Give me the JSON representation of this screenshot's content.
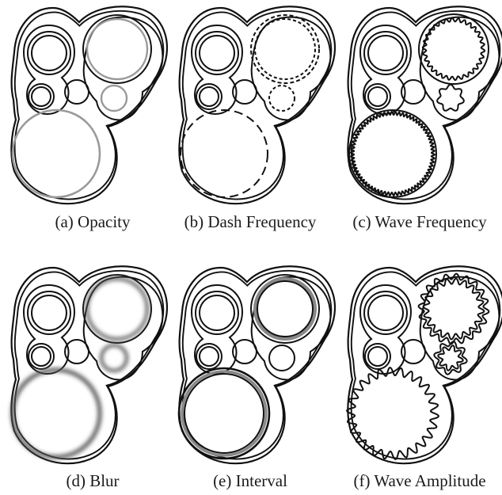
{
  "panels": [
    {
      "caption": "(a) Opacity",
      "variant": "opacity"
    },
    {
      "caption": "(b) Dash Frequency",
      "variant": "dash"
    },
    {
      "caption": "(c) Wave Frequency",
      "variant": "wave-frequency"
    },
    {
      "caption": "(d) Blur",
      "variant": "blur"
    },
    {
      "caption": "(e) Interval",
      "variant": "interval"
    },
    {
      "caption": "(f) Wave Amplitude",
      "variant": "wave-amplitude"
    }
  ],
  "colors": {
    "stroke": "#111111",
    "faded": "#9a9a9a",
    "background": "#ffffff"
  }
}
